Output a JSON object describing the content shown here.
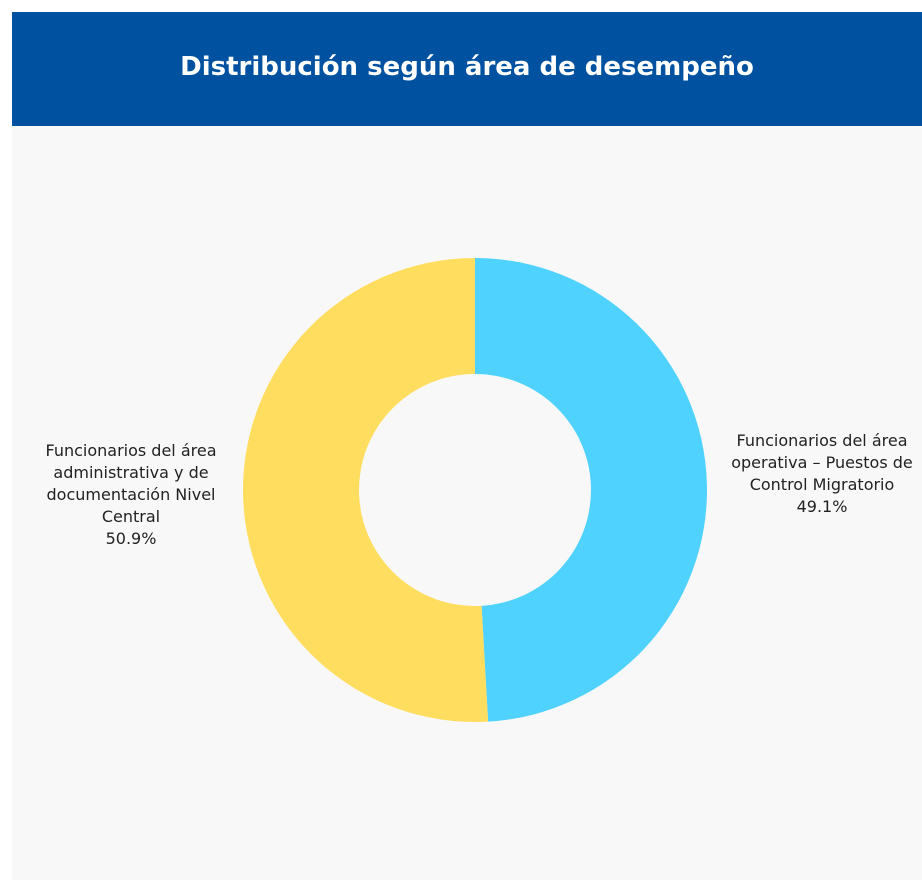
{
  "chart_data": {
    "type": "donut",
    "title": "Distribución según área de desempeño",
    "categories": [
      "Funcionarios del área operativa – Puestos de Control Migratorio",
      "Funcionarios del área administrativa y de documentación Nivel Central"
    ],
    "values": [
      49.1,
      50.9
    ],
    "value_labels": [
      "49.1%",
      "50.9%"
    ],
    "colors": [
      "#4fd2fd",
      "#ffdd5f"
    ]
  }
}
